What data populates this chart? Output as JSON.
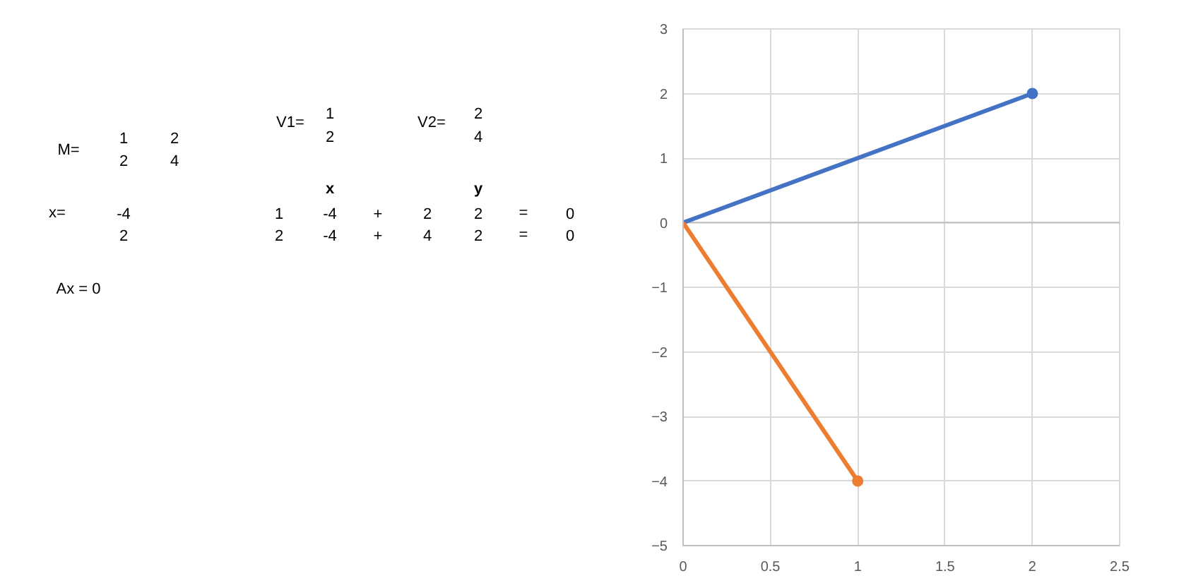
{
  "chart_data": [
    {
      "type": "other",
      "annotations": [
        "M=",
        "1",
        "2",
        "2",
        "4",
        "V1=",
        "1",
        "2",
        "V2=",
        "2",
        "4",
        "x=",
        "-4",
        "2",
        "x",
        "y",
        "1",
        "-4",
        "+",
        "2",
        "2",
        "=",
        "0",
        "2",
        "-4",
        "+",
        "4",
        "2",
        "=",
        "0",
        "Ax = 0"
      ]
    },
    {
      "type": "line",
      "marker": "circle",
      "grid": true,
      "xlim": [
        0,
        2.5
      ],
      "xticks": [
        0,
        0.5,
        1,
        1.5,
        2,
        2.5
      ],
      "ylim": [
        -5,
        3
      ],
      "yticks": [
        -5,
        -4,
        -3,
        -2,
        -1,
        0,
        1,
        2,
        3
      ],
      "series": [
        {
          "color": "#4472c4",
          "x": [
            0,
            2
          ],
          "values": [
            0,
            2
          ]
        },
        {
          "color": "#ed7d31",
          "x": [
            0,
            1
          ],
          "values": [
            0,
            -4
          ]
        }
      ]
    }
  ]
}
